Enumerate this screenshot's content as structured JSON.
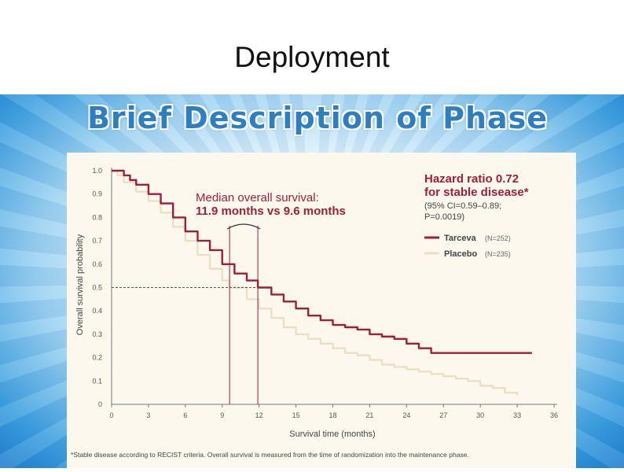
{
  "slide": {
    "title": "Deployment",
    "banner": "Brief Description of Phase"
  },
  "colors": {
    "tarceva": "#9c1f3f",
    "placebo": "#eadfc2",
    "header_text": "#9c1f3f",
    "banner_text": "#2f7fc0"
  },
  "chart_data": {
    "type": "line",
    "xlabel": "Survival time (months)",
    "ylabel": "Overall survival probability",
    "xlim": [
      0,
      36
    ],
    "ylim": [
      0,
      1.0
    ],
    "xticks": [
      "0",
      "3",
      "6",
      "9",
      "12",
      "15",
      "18",
      "21",
      "24",
      "27",
      "30",
      "33",
      "36"
    ],
    "yticks": [
      "0",
      "0.1",
      "0.2",
      "0.3",
      "0.4",
      "0.5",
      "0.6",
      "0.7",
      "0.8",
      "0.9",
      "1.0"
    ],
    "annotation": {
      "title": "Median overall survival:",
      "value": "11.9 months vs 9.6 months",
      "medians": [
        9.6,
        11.9
      ],
      "median_level": 0.5
    },
    "hazard": {
      "line1": "Hazard ratio 0.72",
      "line2": "for stable disease*",
      "line3": "(95% CI=0.59–0.89;",
      "line4": "P=0.0019)"
    },
    "series": [
      {
        "name": "Tarceva",
        "n": "(N=252)",
        "x": [
          0,
          0.5,
          1,
          1.5,
          2,
          3,
          4,
          5,
          6,
          7,
          8,
          9,
          10,
          11,
          11.9,
          13,
          14,
          15,
          16,
          17,
          18,
          19,
          20,
          21,
          22,
          23,
          24,
          25,
          26,
          27,
          28,
          29,
          30,
          31,
          32,
          33,
          34.2
        ],
        "y": [
          1.0,
          1.0,
          0.98,
          0.96,
          0.94,
          0.9,
          0.86,
          0.8,
          0.74,
          0.7,
          0.66,
          0.6,
          0.56,
          0.53,
          0.5,
          0.47,
          0.44,
          0.41,
          0.38,
          0.36,
          0.34,
          0.33,
          0.32,
          0.3,
          0.29,
          0.28,
          0.26,
          0.24,
          0.22,
          0.22,
          0.22,
          0.22,
          0.22,
          0.22,
          0.22,
          0.22,
          0.22
        ]
      },
      {
        "name": "Placebo",
        "n": "(N=235)",
        "x": [
          0,
          0.5,
          1,
          2,
          3,
          4,
          5,
          6,
          7,
          8,
          9,
          9.6,
          11,
          12,
          13,
          14,
          15,
          16,
          17,
          18,
          19,
          20,
          21,
          22,
          23,
          24,
          25,
          26,
          27,
          28,
          29,
          30,
          31,
          32,
          33
        ],
        "y": [
          1.0,
          0.98,
          0.95,
          0.91,
          0.87,
          0.82,
          0.76,
          0.7,
          0.64,
          0.58,
          0.53,
          0.5,
          0.45,
          0.41,
          0.37,
          0.33,
          0.3,
          0.28,
          0.26,
          0.24,
          0.22,
          0.21,
          0.19,
          0.17,
          0.16,
          0.15,
          0.14,
          0.13,
          0.12,
          0.11,
          0.1,
          0.08,
          0.07,
          0.05,
          0.04
        ]
      }
    ],
    "grid": false,
    "legend_position": "right"
  },
  "footnote": "*Stable disease according to RECIST criteria. Overall survival is measured from the time of randomization into the maintenance phase."
}
